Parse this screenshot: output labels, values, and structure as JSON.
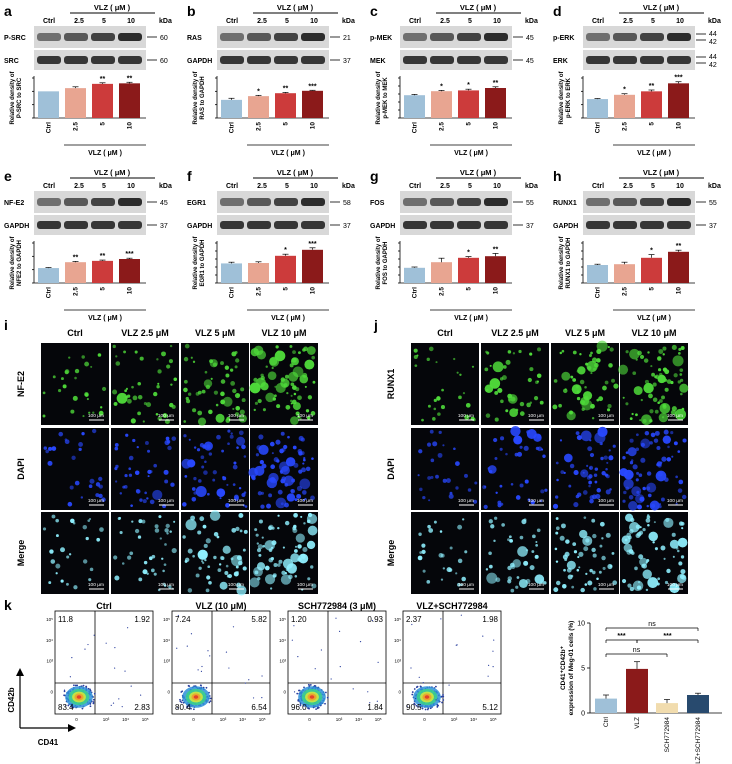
{
  "colors": {
    "ctrl": "#9fc0d8",
    "c25": "#e8a591",
    "c5": "#cc3b3b",
    "c10": "#8b1a1a",
    "sch": "#f1dcae",
    "combo": "#284a6e",
    "blot_bg": "#d8d8d8",
    "band": "#1a1a1a",
    "green": "#4fdc3a",
    "blue": "#2848ff",
    "cyan": "#8ff0ff",
    "micro_bg": "#05060a"
  },
  "vlz_header": "VLZ ( μM )",
  "kda": "kDa",
  "lanes": [
    "Ctrl",
    "2.5",
    "5",
    "10"
  ],
  "xaxis_label": "VLZ ( μM )",
  "western_panels": [
    {
      "letter": "a",
      "blots": [
        {
          "label": "P-SRC",
          "mw": [
            "60"
          ]
        },
        {
          "label": "SRC",
          "mw": [
            "60"
          ]
        }
      ],
      "ylabel": [
        "Relative density of",
        "P-SRC to SRC"
      ],
      "ytop": 1.5,
      "ystep": 0.5,
      "values": [
        1.0,
        1.12,
        1.28,
        1.3
      ],
      "errors": [
        0.0,
        0.05,
        0.04,
        0.04
      ],
      "sig": [
        "",
        "",
        "**",
        "**"
      ]
    },
    {
      "letter": "b",
      "blots": [
        {
          "label": "RAS",
          "mw": [
            "21"
          ]
        },
        {
          "label": "GAPDH",
          "mw": [
            "37"
          ]
        }
      ],
      "ylabel": [
        "Relative density of",
        "RAS to GAPDH"
      ],
      "ytop": 1.5,
      "ystep": 0.5,
      "values": [
        0.68,
        0.82,
        0.93,
        1.02
      ],
      "errors": [
        0.06,
        0.03,
        0.03,
        0.02
      ],
      "sig": [
        "",
        "*",
        "**",
        "***"
      ]
    },
    {
      "letter": "c",
      "blots": [
        {
          "label": "p-MEK",
          "mw": [
            "45"
          ]
        },
        {
          "label": "MEK",
          "mw": [
            "45"
          ]
        }
      ],
      "ylabel": [
        "Relative density of",
        "p-MEK to MEK"
      ],
      "ytop": 1.0,
      "ystep": 0.2,
      "values": [
        0.57,
        0.67,
        0.69,
        0.75
      ],
      "errors": [
        0.02,
        0.02,
        0.03,
        0.03
      ],
      "sig": [
        "",
        "*",
        "*",
        "**"
      ]
    },
    {
      "letter": "d",
      "blots": [
        {
          "label": "p-ERK",
          "mw": [
            "44",
            "42"
          ]
        },
        {
          "label": "ERK",
          "mw": [
            "44",
            "42"
          ]
        }
      ],
      "ylabel": [
        "Relative density of",
        "p-ERK to ERK"
      ],
      "ytop": 1.5,
      "ystep": 0.5,
      "values": [
        0.71,
        0.87,
        1.0,
        1.3
      ],
      "errors": [
        0.02,
        0.04,
        0.05,
        0.06
      ],
      "sig": [
        "",
        "*",
        "**",
        "***"
      ]
    },
    {
      "letter": "e",
      "blots": [
        {
          "label": "NF-E2",
          "mw": [
            "45"
          ]
        },
        {
          "label": "GAPDH",
          "mw": [
            "37"
          ]
        }
      ],
      "ylabel": [
        "Relative density of",
        "NFE2 to GAPDH"
      ],
      "ytop": 1.5,
      "ystep": 0.5,
      "values": [
        0.56,
        0.78,
        0.83,
        0.9
      ],
      "errors": [
        0.02,
        0.03,
        0.03,
        0.03
      ],
      "sig": [
        "",
        "**",
        "**",
        "***"
      ]
    },
    {
      "letter": "f",
      "blots": [
        {
          "label": "EGR1",
          "mw": [
            "58"
          ]
        },
        {
          "label": "GAPDH",
          "mw": [
            "37"
          ]
        }
      ],
      "ylabel": [
        "Relative density of",
        "EGR1 to GAPDH"
      ],
      "ytop": 1.0,
      "ystep": 0.2,
      "values": [
        0.49,
        0.5,
        0.68,
        0.83
      ],
      "errors": [
        0.03,
        0.03,
        0.04,
        0.05
      ],
      "sig": [
        "",
        "",
        "*",
        "***"
      ]
    },
    {
      "letter": "g",
      "blots": [
        {
          "label": "FOS",
          "mw": [
            "55"
          ]
        },
        {
          "label": "GAPDH",
          "mw": [
            "37"
          ]
        }
      ],
      "ylabel": [
        "Relative density of",
        "FOS to GAPDH"
      ],
      "ytop": 1.0,
      "ystep": 0.2,
      "values": [
        0.38,
        0.52,
        0.63,
        0.67
      ],
      "errors": [
        0.02,
        0.1,
        0.03,
        0.07
      ],
      "sig": [
        "",
        "",
        "*",
        "**"
      ]
    },
    {
      "letter": "h",
      "blots": [
        {
          "label": "RUNX1",
          "mw": [
            "55"
          ]
        },
        {
          "label": "GAPDH",
          "mw": [
            "37"
          ]
        }
      ],
      "ylabel": [
        "Relative density of",
        "RUNX1 to GAPDH"
      ],
      "ytop": 1.0,
      "ystep": 0.2,
      "values": [
        0.45,
        0.47,
        0.63,
        0.78
      ],
      "errors": [
        0.02,
        0.05,
        0.08,
        0.04
      ],
      "sig": [
        "",
        "",
        "*",
        "**"
      ]
    }
  ],
  "micro_panels": [
    {
      "letter": "i",
      "columns": [
        "Ctrl",
        "VLZ 2.5 μM",
        "VLZ 5 μM",
        "VLZ 10 μM"
      ],
      "rows": [
        "NF-E2",
        "DAPI",
        "Merge"
      ]
    },
    {
      "letter": "j",
      "columns": [
        "Ctrl",
        "VLZ 2.5 μM",
        "VLZ 5 μM",
        "VLZ 10 μM"
      ],
      "rows": [
        "RUNX1",
        "DAPI",
        "Merge"
      ]
    }
  ],
  "scalebar": "100 μm",
  "panel_k": {
    "letter": "k",
    "flow_plots": [
      {
        "title": "Ctrl",
        "q": [
          "11.8",
          "1.92",
          "83.4",
          "2.83"
        ]
      },
      {
        "title": "VLZ (10 μM)",
        "q": [
          "7.24",
          "5.82",
          "80.4",
          "6.54"
        ]
      },
      {
        "title": "SCH772984 (3 μM)",
        "q": [
          "1.20",
          "0.93",
          "96.0",
          "1.84"
        ]
      },
      {
        "title": "VLZ+SCH772984",
        "q": [
          "2.37",
          "1.98",
          "90.5",
          "5.12"
        ]
      }
    ],
    "flow_xaxis": "CD41",
    "flow_yaxis": "CD42b",
    "flow_ticks": [
      "0",
      "10³",
      "10⁴",
      "10⁵"
    ]
  },
  "chart_data": {
    "type": "bar",
    "categories": [
      "Ctrl",
      "VLZ",
      "SCH772984",
      "VLZ+SCH772984"
    ],
    "values": [
      1.6,
      4.9,
      1.1,
      2.0
    ],
    "errors": [
      0.4,
      0.8,
      0.4,
      0.2
    ],
    "ylabel": [
      "CD41⁺CD42b⁺",
      "expression of Meg-01 cells (%)"
    ],
    "ylim": [
      0,
      10
    ],
    "yticks": [
      "0",
      "5",
      "10"
    ],
    "significance": [
      {
        "pair": [
          0,
          3
        ],
        "label": "ns"
      },
      {
        "pair": [
          0,
          1
        ],
        "label": "***"
      },
      {
        "pair": [
          1,
          3
        ],
        "label": "***"
      },
      {
        "pair": [
          0,
          2
        ],
        "label": "ns"
      }
    ]
  }
}
